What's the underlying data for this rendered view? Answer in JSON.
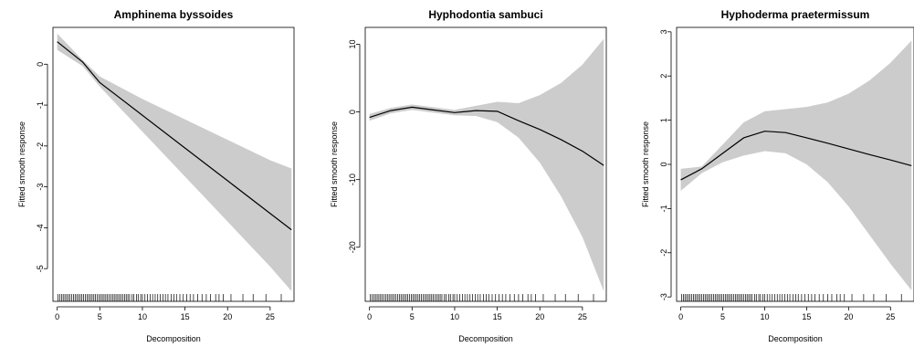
{
  "chart_data": [
    {
      "type": "line",
      "title": "Amphinema byssoides",
      "xlabel": "Decomposition",
      "ylabel": "Fitted smooth response",
      "xlim": [
        -0.5,
        27.8
      ],
      "ylim": [
        -5.8,
        0.9
      ],
      "x_ticks": [
        0,
        5,
        10,
        15,
        20,
        25
      ],
      "y_ticks": [
        -5,
        -4,
        -3,
        -2,
        -1,
        0
      ],
      "fit": {
        "x": [
          0,
          3,
          5,
          10,
          15,
          20,
          25,
          27.5
        ],
        "y": [
          0.55,
          0.05,
          -0.45,
          -1.25,
          -2.05,
          -2.85,
          -3.65,
          -4.05
        ]
      },
      "lower": {
        "x": [
          0,
          3,
          5,
          10,
          15,
          20,
          25,
          27.5
        ],
        "y": [
          0.35,
          -0.05,
          -0.55,
          -1.65,
          -2.75,
          -3.85,
          -4.95,
          -5.55
        ]
      },
      "upper": {
        "x": [
          0,
          3,
          5,
          10,
          15,
          20,
          25,
          27.5
        ],
        "y": [
          0.75,
          0.1,
          -0.3,
          -0.85,
          -1.35,
          -1.85,
          -2.35,
          -2.55
        ]
      },
      "band_color": "#cccccc",
      "line_color": "#000000"
    },
    {
      "type": "line",
      "title": "Hyphodontia sambuci",
      "xlabel": "Decomposition",
      "ylabel": "Fitted smooth response",
      "xlim": [
        -0.5,
        27.8
      ],
      "ylim": [
        -28,
        12.5
      ],
      "x_ticks": [
        0,
        5,
        10,
        15,
        20,
        25
      ],
      "y_ticks": [
        -20,
        -10,
        0,
        10
      ],
      "fit": {
        "x": [
          0,
          2.5,
          5,
          7.5,
          10,
          12.5,
          15,
          17.5,
          20,
          22.5,
          25,
          27.5
        ],
        "y": [
          -0.8,
          0.2,
          0.7,
          0.3,
          -0.1,
          0.2,
          0.1,
          -1.3,
          -2.6,
          -4.1,
          -5.8,
          -7.9
        ]
      },
      "lower": {
        "x": [
          0,
          2.5,
          5,
          7.5,
          10,
          12.5,
          15,
          17.5,
          20,
          22.5,
          25,
          27.5
        ],
        "y": [
          -1.3,
          -0.2,
          0.3,
          -0.1,
          -0.5,
          -0.6,
          -1.5,
          -3.8,
          -7.5,
          -12.5,
          -18.5,
          -26.5
        ]
      },
      "upper": {
        "x": [
          0,
          2.5,
          5,
          7.5,
          10,
          12.5,
          15,
          17.5,
          20,
          22.5,
          25,
          27.5
        ],
        "y": [
          -0.3,
          0.6,
          1.1,
          0.7,
          0.3,
          0.9,
          1.5,
          1.3,
          2.5,
          4.3,
          7.0,
          10.8
        ]
      },
      "band_color": "#cccccc",
      "line_color": "#000000"
    },
    {
      "type": "line",
      "title": "Hyphoderma praetermissum",
      "xlabel": "Decomposition",
      "ylabel": "Fitted smooth response",
      "xlim": [
        -0.5,
        27.8
      ],
      "ylim": [
        -3.1,
        3.1
      ],
      "x_ticks": [
        0,
        5,
        10,
        15,
        20,
        25
      ],
      "y_ticks": [
        -3,
        -2,
        -1,
        0,
        1,
        2,
        3
      ],
      "fit": {
        "x": [
          0,
          2.5,
          5,
          7.5,
          10,
          12.5,
          15,
          17.5,
          20,
          22.5,
          25,
          27.5
        ],
        "y": [
          -0.35,
          -0.1,
          0.25,
          0.6,
          0.75,
          0.72,
          0.6,
          0.48,
          0.35,
          0.22,
          0.1,
          -0.03
        ]
      },
      "lower": {
        "x": [
          0,
          2.5,
          5,
          7.5,
          10,
          12.5,
          15,
          17.5,
          20,
          22.5,
          25,
          27.5
        ],
        "y": [
          -0.6,
          -0.2,
          0.05,
          0.2,
          0.3,
          0.25,
          0.0,
          -0.4,
          -0.95,
          -1.6,
          -2.25,
          -2.85
        ]
      },
      "upper": {
        "x": [
          0,
          2.5,
          5,
          7.5,
          10,
          12.5,
          15,
          17.5,
          20,
          22.5,
          25,
          27.5
        ],
        "y": [
          -0.1,
          -0.05,
          0.45,
          0.95,
          1.2,
          1.25,
          1.3,
          1.4,
          1.6,
          1.9,
          2.3,
          2.8
        ]
      },
      "band_color": "#cccccc",
      "line_color": "#000000"
    }
  ],
  "rug_x": [
    0.1,
    0.3,
    0.5,
    0.7,
    0.9,
    1.1,
    1.3,
    1.5,
    1.7,
    1.9,
    2.1,
    2.3,
    2.5,
    2.7,
    2.9,
    3.1,
    3.3,
    3.5,
    3.7,
    3.9,
    4.1,
    4.3,
    4.5,
    4.7,
    4.9,
    5.1,
    5.3,
    5.5,
    5.7,
    5.9,
    6.1,
    6.3,
    6.5,
    6.7,
    6.9,
    7.1,
    7.3,
    7.5,
    7.7,
    7.9,
    8.1,
    8.3,
    8.5,
    8.8,
    9.0,
    9.3,
    9.5,
    9.8,
    10.0,
    10.3,
    10.6,
    10.9,
    11.2,
    11.5,
    11.8,
    12.1,
    12.4,
    12.7,
    13.0,
    13.4,
    13.7,
    14.0,
    14.4,
    14.8,
    15.2,
    15.6,
    16.0,
    16.5,
    17.0,
    17.5,
    18.0,
    18.6,
    19.0,
    19.5,
    20.4,
    21.8,
    23.0,
    24.5,
    26.3
  ]
}
